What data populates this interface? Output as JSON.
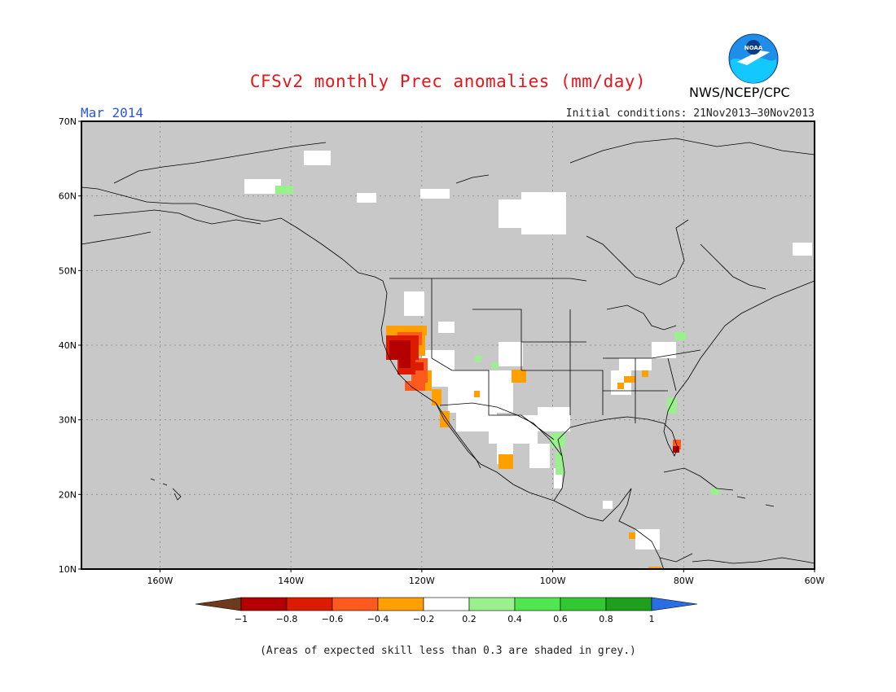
{
  "header": {
    "title": "CFSv2 monthly Prec anomalies (mm/day)",
    "period": "Mar 2014",
    "initial_conditions": "Initial conditions: 21Nov2013–30Nov2013",
    "agency": "NWS/NCEP/CPC",
    "logo_text": "NOAA"
  },
  "map": {
    "projection": "lat-lon",
    "lon_range": [
      -172,
      -60
    ],
    "lat_range": [
      10,
      70
    ],
    "background_color": "#c8c8c8",
    "grid": "dotted",
    "lat_ticks": [
      {
        "value": 70,
        "label": "70N"
      },
      {
        "value": 60,
        "label": "60N"
      },
      {
        "value": 50,
        "label": "50N"
      },
      {
        "value": 40,
        "label": "40N"
      },
      {
        "value": 30,
        "label": "30N"
      },
      {
        "value": 20,
        "label": "20N"
      },
      {
        "value": 10,
        "label": "10N"
      }
    ],
    "lon_ticks": [
      {
        "value": -160,
        "label": "160W"
      },
      {
        "value": -140,
        "label": "140W"
      },
      {
        "value": -120,
        "label": "120W"
      },
      {
        "value": -100,
        "label": "100W"
      },
      {
        "value": -80,
        "label": "80W"
      },
      {
        "value": -60,
        "label": "60W"
      }
    ]
  },
  "colorbar": {
    "labels": [
      "−1",
      "−0.8",
      "−0.6",
      "−0.4",
      "−0.2",
      "0.2",
      "0.4",
      "0.6",
      "0.8",
      "1"
    ],
    "colors": [
      "#6e3a1e",
      "#b50000",
      "#dc1c00",
      "#ff5a1e",
      "#ffa000",
      "#ffffff",
      "#9af08c",
      "#50e650",
      "#32c832",
      "#1ea01e",
      "#2a6ee6"
    ]
  },
  "caption": "(Areas of expected skill less than 0.3 are shaded in grey.)"
}
